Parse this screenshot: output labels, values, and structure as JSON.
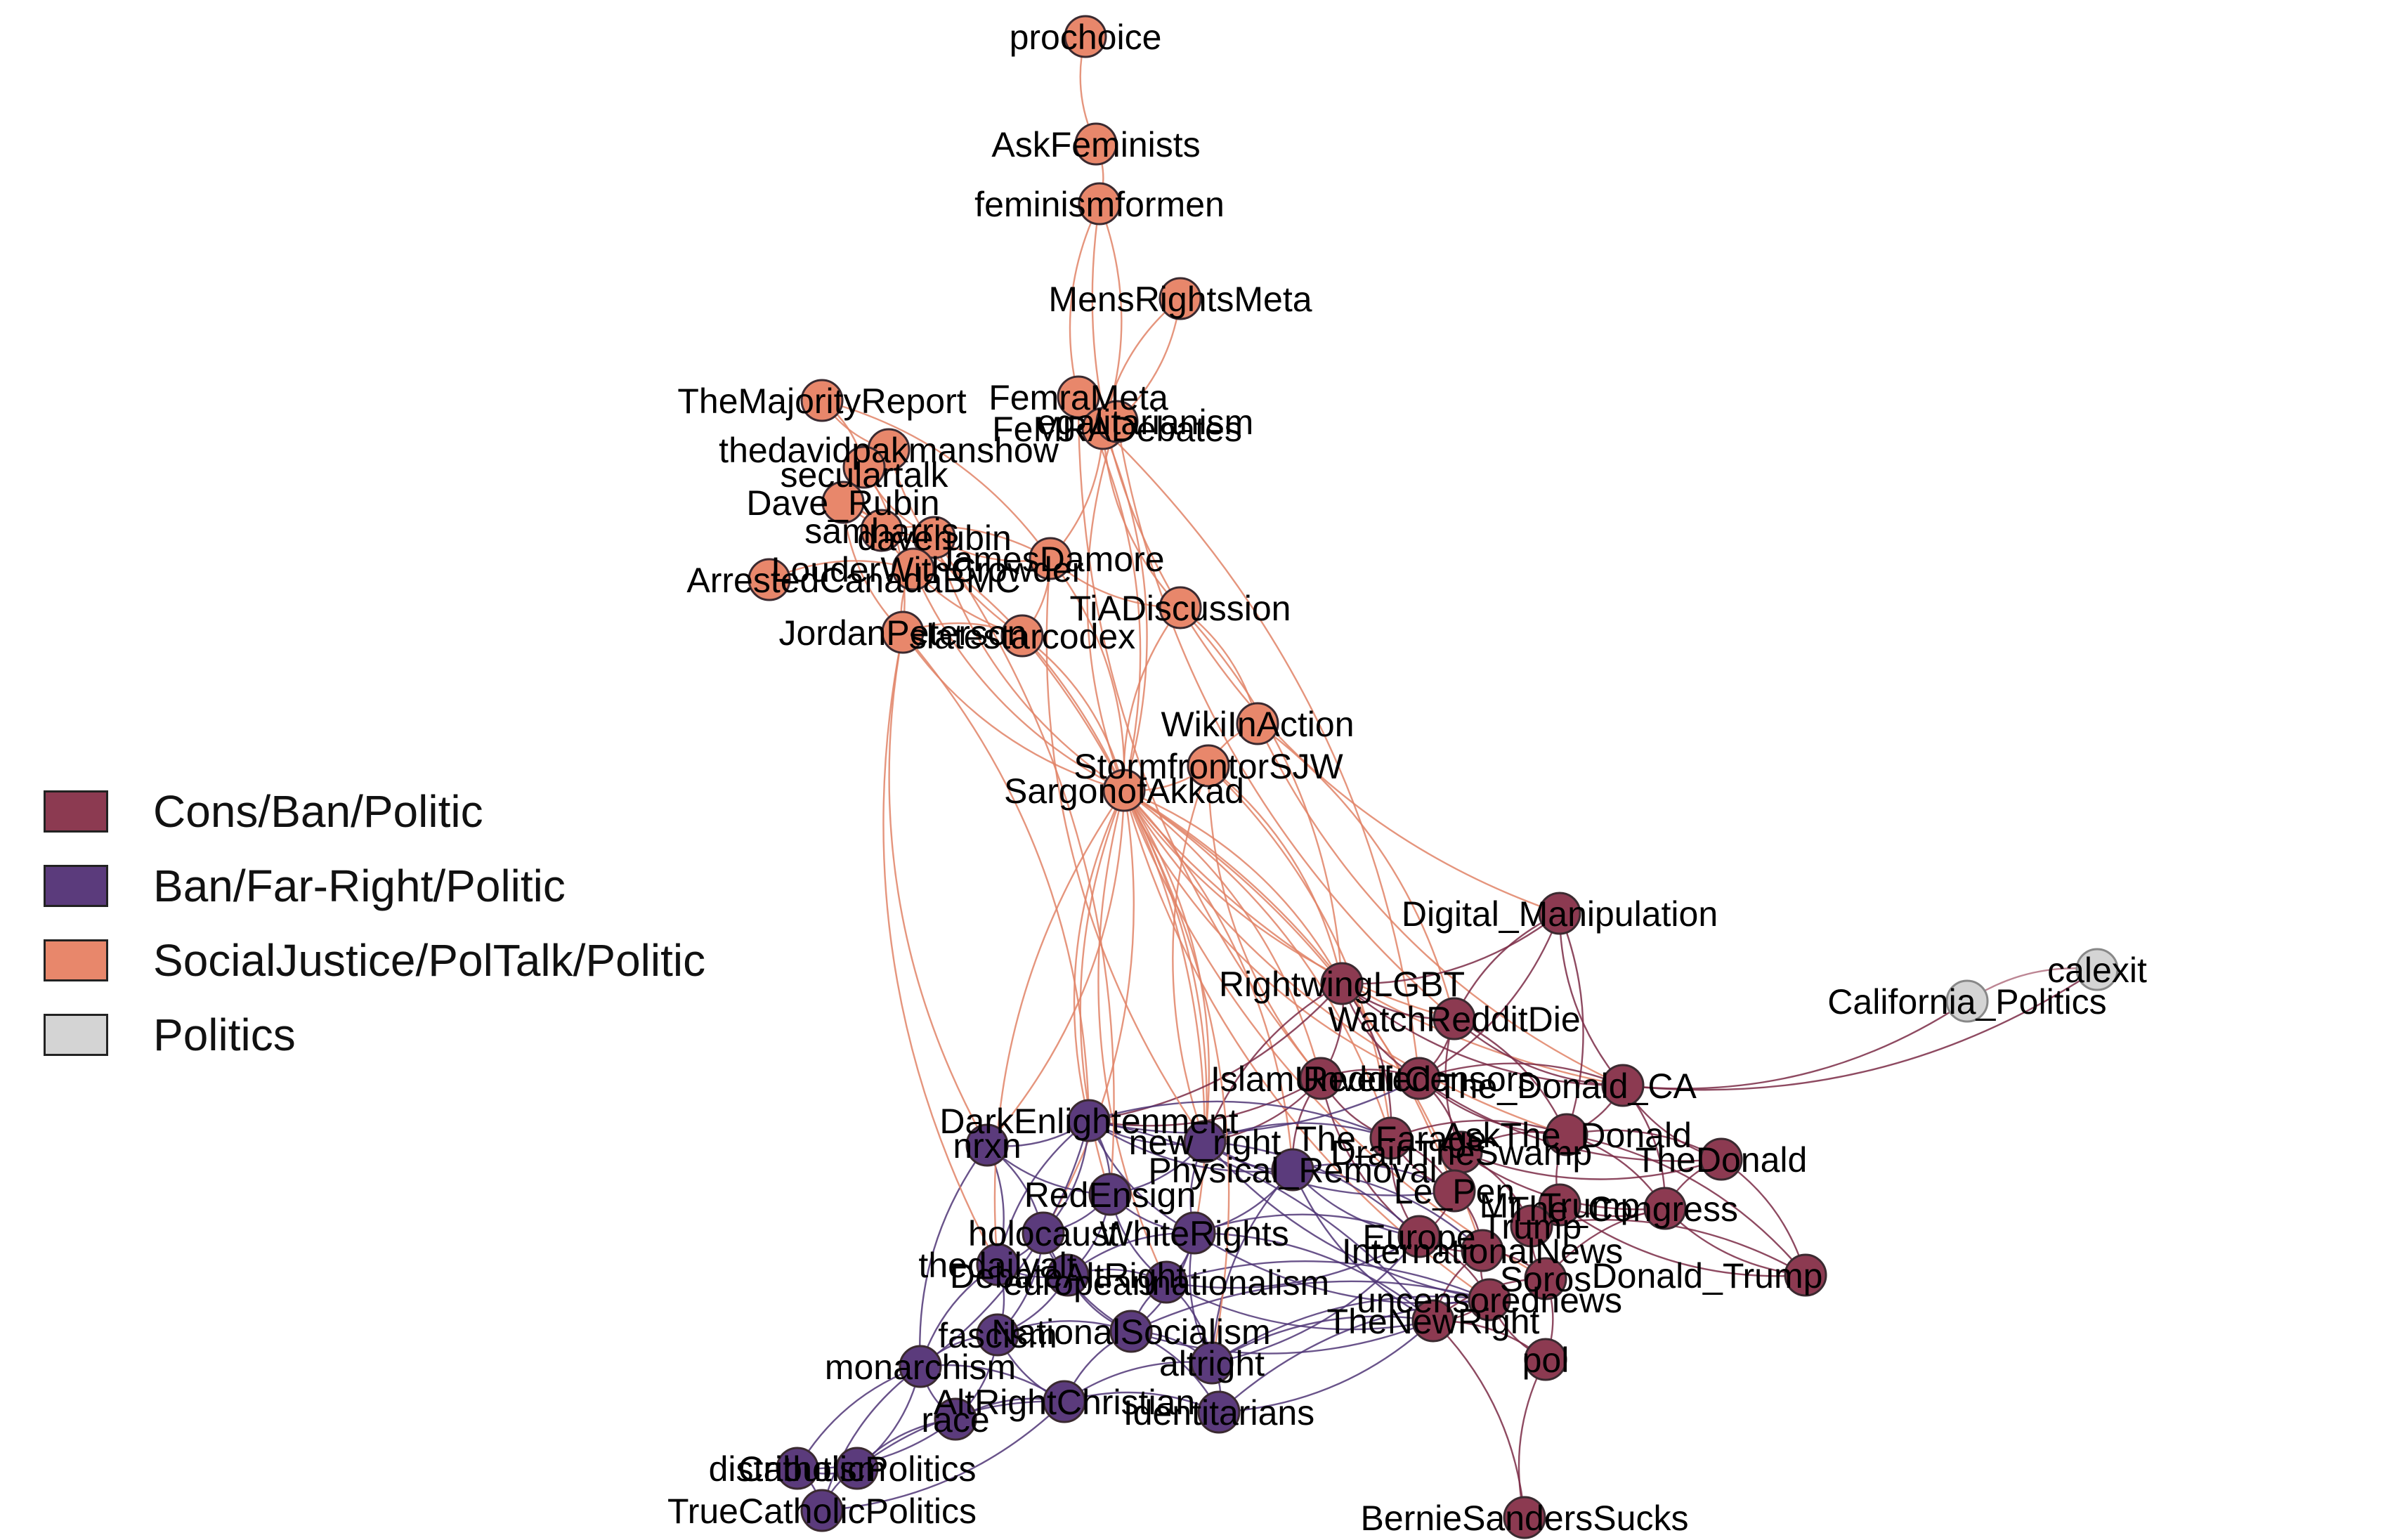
{
  "legend": [
    {
      "label": "Cons/Ban/Politic",
      "color": "#8c3a51"
    },
    {
      "label": "Ban/Far-Right/Politic",
      "color": "#5b3b7c"
    },
    {
      "label": "SocialJustice/PolTalk/Politic",
      "color": "#e8876b"
    },
    {
      "label": "Politics",
      "color": "#d4d4d4"
    }
  ],
  "groups": {
    "cons": {
      "fill": "#8c3a51",
      "edge": "#7a2a45"
    },
    "far": {
      "fill": "#5b3b7c",
      "edge": "#4f3575"
    },
    "sj": {
      "fill": "#e8876b",
      "edge": "#e08266"
    },
    "pol": {
      "fill": "#d4d4d4",
      "edge": "#b07080"
    }
  },
  "nodes": [
    {
      "id": "prochoice",
      "label": "prochoice",
      "group": "sj"
    },
    {
      "id": "AskFeminists",
      "label": "AskFeminists",
      "group": "sj"
    },
    {
      "id": "feminismformen",
      "label": "feminismformen",
      "group": "sj"
    },
    {
      "id": "MensRightsMeta",
      "label": "MensRightsMeta",
      "group": "sj"
    },
    {
      "id": "FemraMeta",
      "label": "FemraMeta",
      "group": "sj"
    },
    {
      "id": "MRA_Debates",
      "label": "FeMRADebates",
      "group": "sj"
    },
    {
      "id": "egalitarianism",
      "label": "egalitarianism",
      "group": "sj"
    },
    {
      "id": "TheMajorityReport",
      "label": "TheMajorityReport",
      "group": "sj"
    },
    {
      "id": "thedavidpakmanshow",
      "label": "thedavidpakmanshow",
      "group": "sj"
    },
    {
      "id": "seculartalk",
      "label": "seculartalk",
      "group": "sj"
    },
    {
      "id": "Dave_Rubin",
      "label": "Dave_Rubin",
      "group": "sj"
    },
    {
      "id": "samharris",
      "label": "samharris",
      "group": "sj"
    },
    {
      "id": "daverubin",
      "label": "daverubin",
      "group": "sj"
    },
    {
      "id": "JamesDamore",
      "label": "JamesDamore",
      "group": "sj"
    },
    {
      "id": "ArrestedCanada",
      "label": "ArrestedCanadaBMC",
      "group": "sj"
    },
    {
      "id": "LouderWithCrowder",
      "label": "LouderWithCrowder",
      "group": "sj"
    },
    {
      "id": "TiADiscussion",
      "label": "TiADiscussion",
      "group": "sj"
    },
    {
      "id": "JordanPeterson",
      "label": "JordanPeterson",
      "group": "sj"
    },
    {
      "id": "slatestarcodex",
      "label": "slatestarcodex",
      "group": "sj"
    },
    {
      "id": "WikiInAction",
      "label": "WikiInAction",
      "group": "sj"
    },
    {
      "id": "StormfrontorSJW",
      "label": "StormfrontorSJW",
      "group": "sj"
    },
    {
      "id": "SargonofAkkad",
      "label": "SargonofAkkad",
      "group": "sj"
    },
    {
      "id": "Digital_Manipulation",
      "label": "Digital_Manipulation",
      "group": "cons"
    },
    {
      "id": "RightwingLGBT",
      "label": "RightwingLGBT",
      "group": "cons"
    },
    {
      "id": "WatchRedditDie",
      "label": "WatchRedditDie",
      "group": "cons"
    },
    {
      "id": "IslamUnveiled",
      "label": "IslamUnveiled",
      "group": "cons"
    },
    {
      "id": "RedditCensors",
      "label": "RedditCensors",
      "group": "cons"
    },
    {
      "id": "The_Donald_CA",
      "label": "The_Donald_CA",
      "group": "cons"
    },
    {
      "id": "The_Farage",
      "label": "The_Farage",
      "group": "cons"
    },
    {
      "id": "AskThe_Donald",
      "label": "AskThe_Donald",
      "group": "cons"
    },
    {
      "id": "DrainTheSwamp",
      "label": "DrainTheSwamp",
      "group": "cons"
    },
    {
      "id": "TheDonald",
      "label": "TheDonald",
      "group": "cons"
    },
    {
      "id": "Le_Pen",
      "label": "Le_Pen",
      "group": "cons"
    },
    {
      "id": "The_Congress",
      "label": "The_Congress",
      "group": "cons"
    },
    {
      "id": "Mr_Trump",
      "label": "Mr_Trump",
      "group": "cons"
    },
    {
      "id": "Trump",
      "label": "Trump",
      "group": "cons"
    },
    {
      "id": "Euro",
      "label": "Europe",
      "group": "cons"
    },
    {
      "id": "InternationalNews",
      "label": "InternationalNews",
      "group": "cons"
    },
    {
      "id": "Soros",
      "label": "Soros",
      "group": "cons"
    },
    {
      "id": "Donald_Trump",
      "label": "Donald_Trump",
      "group": "cons"
    },
    {
      "id": "TheNewRight",
      "label": "TheNewRight",
      "group": "cons"
    },
    {
      "id": "uncensorednews",
      "label": "uncensorednews",
      "group": "cons"
    },
    {
      "id": "pol",
      "label": "pol",
      "group": "cons"
    },
    {
      "id": "BernieSandersSucks",
      "label": "BernieSandersSucks",
      "group": "cons"
    },
    {
      "id": "calexit",
      "label": "calexit",
      "group": "pol"
    },
    {
      "id": "California_Politics",
      "label": "California_Politics",
      "group": "pol"
    },
    {
      "id": "DarkEnlightenment",
      "label": "DarkEnlightenment",
      "group": "far"
    },
    {
      "id": "nrxn",
      "label": "nrxn",
      "group": "far"
    },
    {
      "id": "new_right",
      "label": "new_right",
      "group": "far"
    },
    {
      "id": "Physical_Removal",
      "label": "Physical_Removal",
      "group": "far"
    },
    {
      "id": "RedEnsign",
      "label": "RedEnsign",
      "group": "far"
    },
    {
      "id": "holocaust",
      "label": "holocaust",
      "group": "far"
    },
    {
      "id": "WhiteRights",
      "label": "WhiteRights",
      "group": "far"
    },
    {
      "id": "thedaily",
      "label": "thedailyalt",
      "group": "far"
    },
    {
      "id": "DebateAltRight",
      "label": "DebateAltRight",
      "group": "far"
    },
    {
      "id": "europeannationalism",
      "label": "europeannationalism",
      "group": "far"
    },
    {
      "id": "fascism",
      "label": "fascism",
      "group": "far"
    },
    {
      "id": "NationalSocialism",
      "label": "NationalSocialism",
      "group": "far"
    },
    {
      "id": "monarchism",
      "label": "monarchism",
      "group": "far"
    },
    {
      "id": "altright",
      "label": "altright",
      "group": "far"
    },
    {
      "id": "AltRightChristian",
      "label": "AltRightChristian",
      "group": "far"
    },
    {
      "id": "race",
      "label": "race",
      "group": "far"
    },
    {
      "id": "Identitarians",
      "label": "Identitarians",
      "group": "far"
    },
    {
      "id": "distributism",
      "label": "distributism",
      "group": "far"
    },
    {
      "id": "CatholicPolitics",
      "label": "CatholicPolitics",
      "group": "far"
    },
    {
      "id": "TrueCatholicPolitics",
      "label": "TrueCatholicPolitics",
      "group": "far"
    }
  ]
}
